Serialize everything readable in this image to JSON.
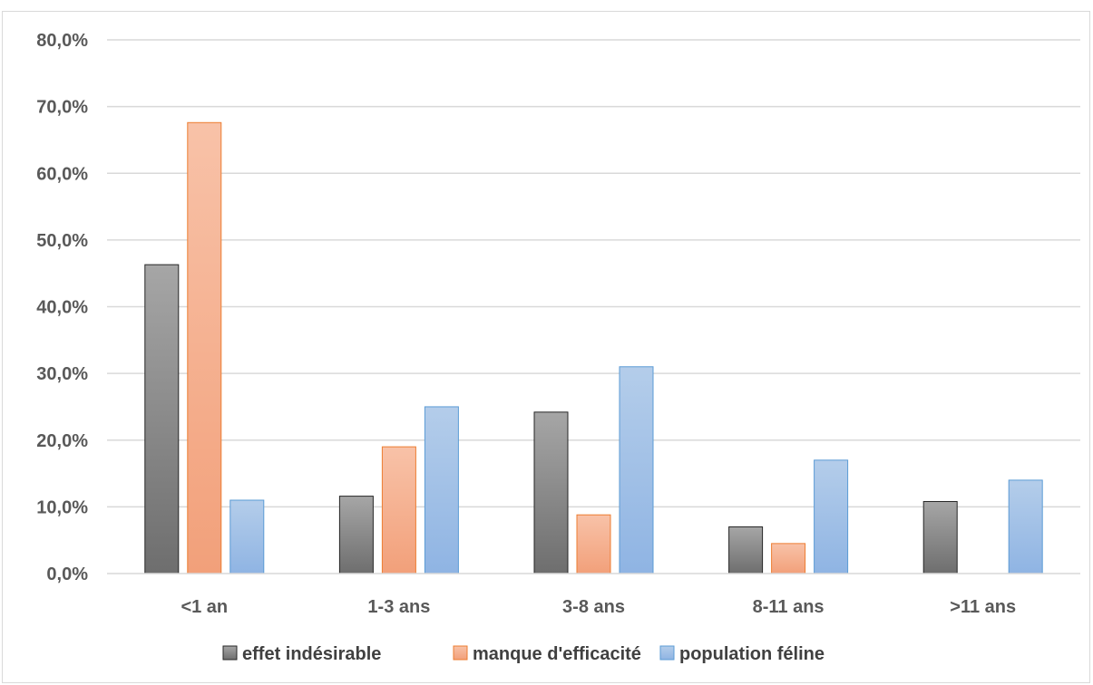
{
  "chart_data": {
    "type": "bar",
    "categories": [
      "<1 an",
      "1-3 ans",
      "3-8 ans",
      "8-11 ans",
      ">11 ans"
    ],
    "series": [
      {
        "name": "effet indésirable",
        "values": [
          46.3,
          11.6,
          24.2,
          7.0,
          10.8
        ]
      },
      {
        "name": "manque d'efficacité",
        "values": [
          67.6,
          19.0,
          8.8,
          4.5,
          0.0
        ]
      },
      {
        "name": "population féline",
        "values": [
          11.0,
          25.0,
          31.0,
          17.0,
          14.0
        ]
      }
    ],
    "yticks": [
      "0,0%",
      "10,0%",
      "20,0%",
      "30,0%",
      "40,0%",
      "50,0%",
      "60,0%",
      "70,0%",
      "80,0%"
    ],
    "ylim": [
      0,
      80
    ],
    "grid": true,
    "legend_position": "bottom",
    "colors": {
      "series": [
        {
          "top": "#a6a6a6",
          "bottom": "#6e6e6e",
          "stroke": "#262626"
        },
        {
          "top": "#f8c2a8",
          "bottom": "#f2a07a",
          "stroke": "#ed7d31"
        },
        {
          "top": "#b4cdea",
          "bottom": "#8fb4e3",
          "stroke": "#5b9bd5"
        }
      ],
      "grid": "#d9d9d9",
      "axis": "#d9d9d9"
    }
  }
}
